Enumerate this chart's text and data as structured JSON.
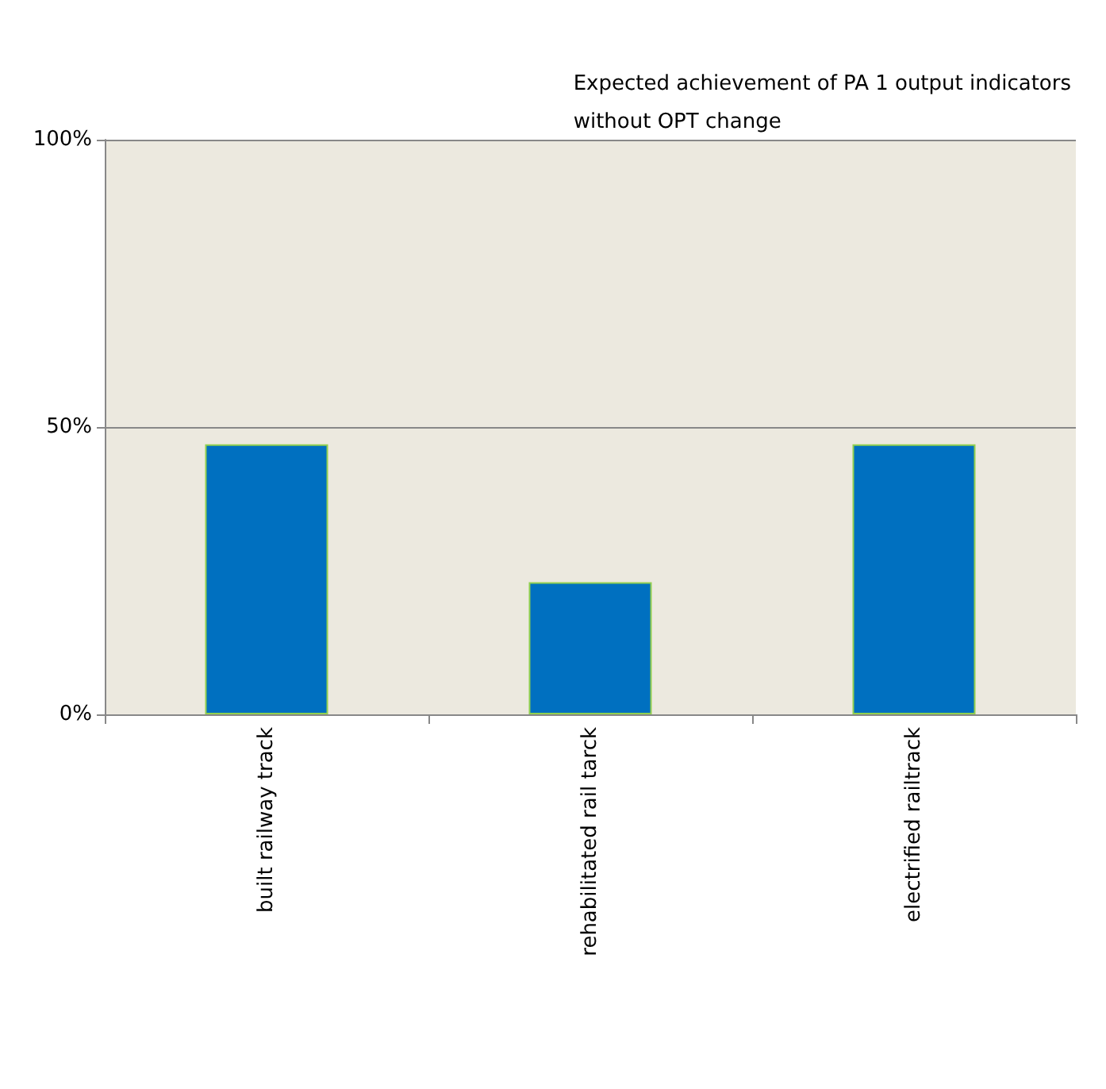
{
  "chart_data": {
    "type": "bar",
    "title": "Expected achievement of PA 1 output indicators\nwithout OPT change",
    "categories": [
      "built railway track",
      "rehabilitated rail tarck",
      "electrified railtrack"
    ],
    "values": [
      47,
      23,
      47
    ],
    "color": "#0070c0",
    "ylim": [
      0,
      100
    ],
    "yticks": [
      {
        "value": 0,
        "label": "0%"
      },
      {
        "value": 50,
        "label": "50%"
      },
      {
        "value": 100,
        "label": "100%"
      }
    ],
    "grid": "y"
  }
}
